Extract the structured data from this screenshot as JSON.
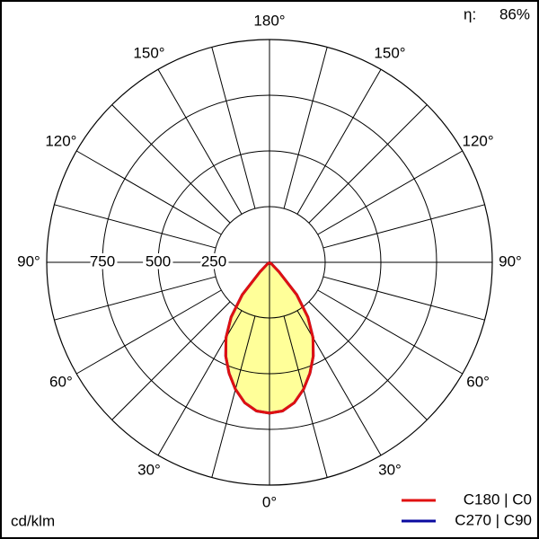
{
  "chart_data": {
    "type": "polar",
    "unit_label": "cd/klm",
    "efficiency_label": "η:",
    "efficiency": {
      "value": 86,
      "label": "86%"
    },
    "rlim": [
      0,
      1000
    ],
    "rticks": [
      250,
      500,
      750
    ],
    "angle_ticks": [
      {
        "value": 0,
        "label": "0°"
      },
      {
        "value": 30,
        "label": "30°"
      },
      {
        "value": 60,
        "label": "60°"
      },
      {
        "value": 90,
        "label": "90°"
      },
      {
        "value": 120,
        "label": "120°"
      },
      {
        "value": 150,
        "label": "150°"
      },
      {
        "value": 180,
        "label": "180°"
      }
    ],
    "fill_color": "#ffff99",
    "x": [
      0,
      5,
      10,
      15,
      20,
      25,
      30,
      35,
      40,
      45,
      50,
      55,
      60
    ],
    "series": [
      {
        "name": "C180 | C0",
        "color": "#e01010",
        "values": [
          677,
          670,
          640,
          590,
          530,
          465,
          390,
          300,
          190,
          60,
          15,
          0,
          0
        ]
      },
      {
        "name": "C270 | C90",
        "color": "#0a0aa0",
        "values": [
          677,
          670,
          640,
          590,
          530,
          465,
          390,
          300,
          190,
          60,
          15,
          0,
          0
        ]
      }
    ]
  }
}
